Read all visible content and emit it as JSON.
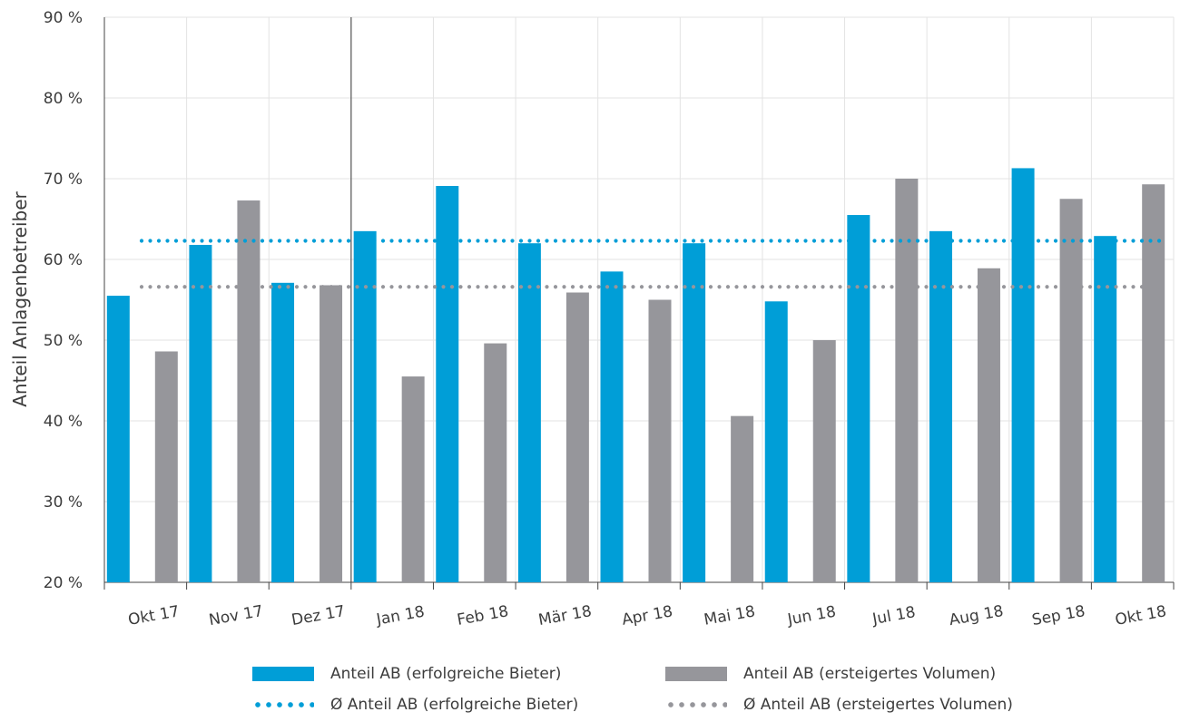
{
  "chart_data": {
    "type": "bar",
    "ylabel": "Anteil Anlagenbetreiber",
    "ylim": [
      20,
      90
    ],
    "yticks": [
      "20 %",
      "30 %",
      "40 %",
      "50 %",
      "60 %",
      "70 %",
      "80 %",
      "90 %"
    ],
    "ytick_values": [
      20,
      30,
      40,
      50,
      60,
      70,
      80,
      90
    ],
    "categories": [
      "Okt 17",
      "Nov 17",
      "Dez 17",
      "Jan 18",
      "Feb 18",
      "Mär 18",
      "Apr 18",
      "Mai 18",
      "Jun 18",
      "Jul 18",
      "Aug 18",
      "Sep 18",
      "Okt 18"
    ],
    "series": [
      {
        "name": "Anteil AB (erfolgreiche Bieter)",
        "color": "#009ed7",
        "values": [
          55.5,
          61.8,
          57.1,
          63.5,
          69.1,
          62.0,
          58.5,
          62.0,
          54.8,
          65.5,
          63.5,
          71.3,
          62.9
        ]
      },
      {
        "name": "Anteil AB (ersteigertes Volumen)",
        "color": "#96969b",
        "values": [
          48.6,
          67.3,
          56.8,
          45.5,
          49.6,
          55.9,
          55.0,
          40.6,
          50.0,
          70.0,
          58.9,
          67.5,
          69.3
        ]
      }
    ],
    "reference_lines": [
      {
        "name": "Ø Anteil AB (erfolgreiche Bieter)",
        "value": 62.3,
        "color": "#009ed7",
        "style": "dotted"
      },
      {
        "name": "Ø Anteil AB (ersteigertes Volumen)",
        "value": 56.6,
        "color": "#96969b",
        "style": "dotted"
      }
    ],
    "separator_after_category": "Dez 17",
    "grid": true,
    "legend_position": "bottom"
  }
}
